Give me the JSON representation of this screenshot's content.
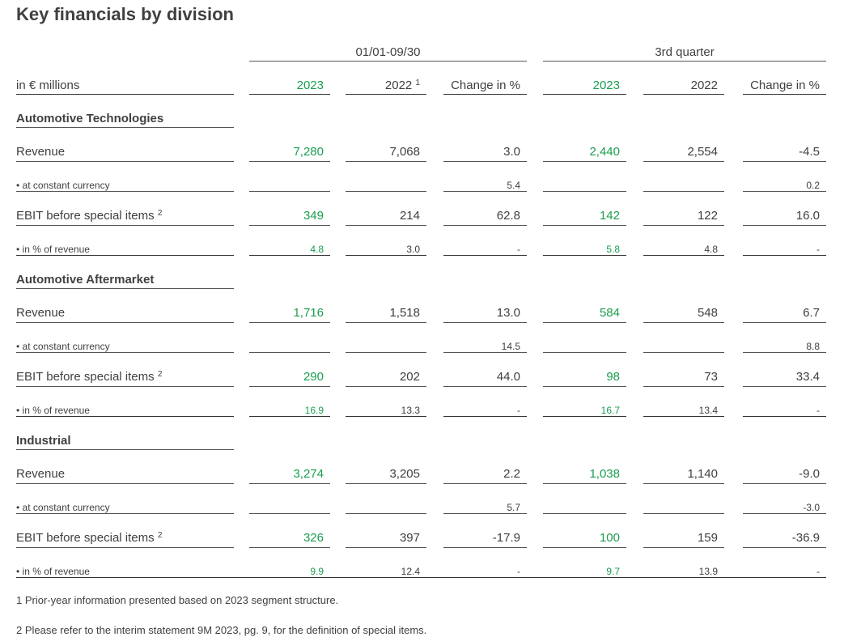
{
  "title": "Key financials by division",
  "period_headers": {
    "ytd": "01/01-09/30",
    "quarter": "3rd quarter"
  },
  "column_headers": {
    "unit_label": "in € millions",
    "ytd_2023": "2023",
    "ytd_2022": "2022",
    "ytd_2022_footnote": "1",
    "ytd_change": "Change in %",
    "q_2023": "2023",
    "q_2022": "2022",
    "q_change": "Change in %"
  },
  "divisions": [
    {
      "name": "Automotive Technologies",
      "rows": [
        {
          "label": "Revenue",
          "footnote": "",
          "small": false,
          "values": [
            "7,280",
            "7,068",
            "3.0",
            "2,440",
            "2,554",
            "-4.5"
          ]
        },
        {
          "label": "• at constant currency",
          "footnote": "",
          "small": true,
          "values": [
            "",
            "",
            "5.4",
            "",
            "",
            "0.2"
          ]
        },
        {
          "label": "EBIT before special items",
          "footnote": "2",
          "small": false,
          "values": [
            "349",
            "214",
            "62.8",
            "142",
            "122",
            "16.0"
          ]
        },
        {
          "label": "• in % of revenue",
          "footnote": "",
          "small": true,
          "values": [
            "4.8",
            "3.0",
            "-",
            "5.8",
            "4.8",
            "-"
          ]
        }
      ]
    },
    {
      "name": "Automotive Aftermarket",
      "rows": [
        {
          "label": "Revenue",
          "footnote": "",
          "small": false,
          "values": [
            "1,716",
            "1,518",
            "13.0",
            "584",
            "548",
            "6.7"
          ]
        },
        {
          "label": "• at constant currency",
          "footnote": "",
          "small": true,
          "values": [
            "",
            "",
            "14.5",
            "",
            "",
            "8.8"
          ]
        },
        {
          "label": "EBIT before special items",
          "footnote": "2",
          "small": false,
          "values": [
            "290",
            "202",
            "44.0",
            "98",
            "73",
            "33.4"
          ]
        },
        {
          "label": "• in % of revenue",
          "footnote": "",
          "small": true,
          "values": [
            "16.9",
            "13.3",
            "-",
            "16.7",
            "13.4",
            "-"
          ]
        }
      ]
    },
    {
      "name": "Industrial",
      "rows": [
        {
          "label": "Revenue",
          "footnote": "",
          "small": false,
          "values": [
            "3,274",
            "3,205",
            "2.2",
            "1,038",
            "1,140",
            "-9.0"
          ]
        },
        {
          "label": "• at constant currency",
          "footnote": "",
          "small": true,
          "values": [
            "",
            "",
            "5.7",
            "",
            "",
            "-3.0"
          ]
        },
        {
          "label": "EBIT before special items",
          "footnote": "2",
          "small": false,
          "values": [
            "326",
            "397",
            "-17.9",
            "100",
            "159",
            "-36.9"
          ]
        },
        {
          "label": "• in % of revenue",
          "footnote": "",
          "small": true,
          "values": [
            "9.9",
            "12.4",
            "-",
            "9.7",
            "13.9",
            "-"
          ]
        }
      ]
    }
  ],
  "footnotes": [
    "1 Prior-year information presented based on 2023 segment structure.",
    "2 Please refer to the interim statement 9M 2023, pg. 9, for the definition of special items."
  ],
  "colors": {
    "highlight": "#1a9e4f",
    "text": "#404040"
  }
}
